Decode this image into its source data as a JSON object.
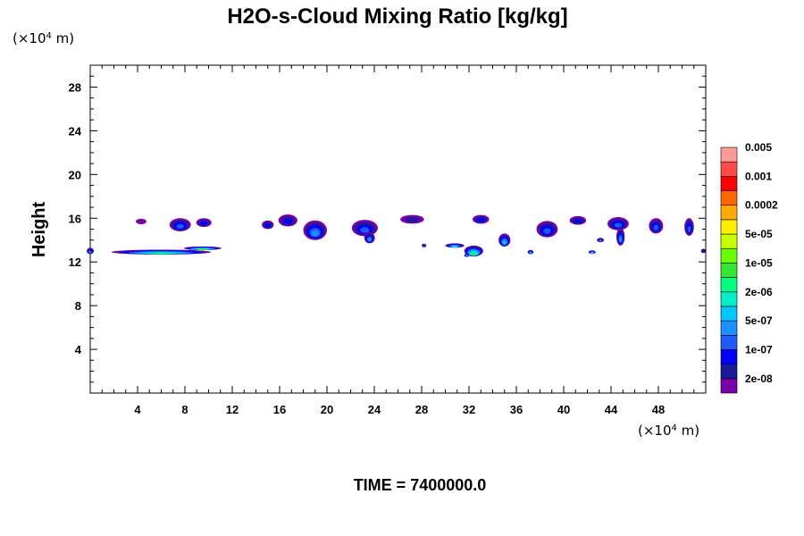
{
  "chart_data": {
    "type": "contour",
    "title": "H2O-s-Cloud Mixing Ratio [kg/kg]",
    "ylabel": "Height",
    "x_unit_label": "(×10",
    "x_unit_exp": "4",
    "x_unit_tail": " m)",
    "y_unit_label": "(×10",
    "y_unit_exp": "4",
    "y_unit_tail": " m)",
    "time_label": "TIME = 7400000.0",
    "xlim": [
      0,
      52
    ],
    "ylim": [
      0,
      30
    ],
    "x_ticks": [
      4,
      8,
      12,
      16,
      20,
      24,
      28,
      32,
      36,
      40,
      44,
      48
    ],
    "y_ticks": [
      4,
      8,
      12,
      16,
      20,
      24,
      28
    ],
    "colorbar": {
      "colors": [
        "#7b00a8",
        "#1a1a9a",
        "#0000ff",
        "#1e5cff",
        "#1e90ff",
        "#00c8ff",
        "#00eec8",
        "#00ff80",
        "#33e633",
        "#66ff00",
        "#c8ff00",
        "#ffee00",
        "#ffaa00",
        "#ff6600",
        "#ff0000",
        "#ff4a4a",
        "#ff9a9a"
      ],
      "labels": [
        "2e-08",
        "1e-07",
        "5e-07",
        "2e-06",
        "1e-05",
        "5e-05",
        "0.0002",
        "0.001",
        "0.005"
      ]
    },
    "features": [
      {
        "x": 0.0,
        "y": 13.0,
        "w": 0.6,
        "h": 0.6,
        "level": 4
      },
      {
        "x": 4.3,
        "y": 15.7,
        "w": 0.9,
        "h": 0.5,
        "level": 0
      },
      {
        "x": 7.6,
        "y": 15.4,
        "w": 1.8,
        "h": 1.2,
        "level": 3
      },
      {
        "x": 9.6,
        "y": 15.6,
        "w": 1.3,
        "h": 0.8,
        "level": 2
      },
      {
        "x": 6.0,
        "y": 12.9,
        "w": 8.4,
        "h": 0.45,
        "level": 7
      },
      {
        "x": 9.5,
        "y": 13.25,
        "w": 3.2,
        "h": 0.3,
        "level": 8
      },
      {
        "x": 15.0,
        "y": 15.4,
        "w": 1.0,
        "h": 0.8,
        "level": 2
      },
      {
        "x": 16.7,
        "y": 15.8,
        "w": 1.6,
        "h": 1.1,
        "level": 2
      },
      {
        "x": 19.0,
        "y": 14.9,
        "w": 2.0,
        "h": 1.8,
        "level": 4
      },
      {
        "x": 23.2,
        "y": 15.1,
        "w": 2.2,
        "h": 1.5,
        "level": 3
      },
      {
        "x": 23.6,
        "y": 14.2,
        "w": 0.9,
        "h": 1.0,
        "level": 4
      },
      {
        "x": 27.2,
        "y": 15.9,
        "w": 2.0,
        "h": 0.8,
        "level": 1
      },
      {
        "x": 28.2,
        "y": 13.5,
        "w": 0.4,
        "h": 0.3,
        "level": 3
      },
      {
        "x": 30.8,
        "y": 13.5,
        "w": 1.6,
        "h": 0.4,
        "level": 6
      },
      {
        "x": 32.4,
        "y": 13.0,
        "w": 1.6,
        "h": 1.0,
        "level": 8
      },
      {
        "x": 31.8,
        "y": 12.6,
        "w": 0.4,
        "h": 0.3,
        "level": 5
      },
      {
        "x": 33.0,
        "y": 15.9,
        "w": 1.4,
        "h": 0.8,
        "level": 2
      },
      {
        "x": 35.0,
        "y": 14.0,
        "w": 1.0,
        "h": 1.2,
        "level": 5
      },
      {
        "x": 37.2,
        "y": 12.9,
        "w": 0.5,
        "h": 0.4,
        "level": 5
      },
      {
        "x": 38.6,
        "y": 15.0,
        "w": 1.8,
        "h": 1.5,
        "level": 3
      },
      {
        "x": 41.2,
        "y": 15.8,
        "w": 1.4,
        "h": 0.8,
        "level": 2
      },
      {
        "x": 42.4,
        "y": 12.9,
        "w": 0.6,
        "h": 0.3,
        "level": 6
      },
      {
        "x": 43.1,
        "y": 14.0,
        "w": 0.6,
        "h": 0.4,
        "level": 4
      },
      {
        "x": 44.6,
        "y": 15.5,
        "w": 1.8,
        "h": 1.2,
        "level": 3
      },
      {
        "x": 44.8,
        "y": 14.3,
        "w": 0.7,
        "h": 1.6,
        "level": 4
      },
      {
        "x": 47.8,
        "y": 15.3,
        "w": 1.2,
        "h": 1.4,
        "level": 3
      },
      {
        "x": 50.6,
        "y": 15.2,
        "w": 0.8,
        "h": 1.6,
        "level": 3
      },
      {
        "x": 51.8,
        "y": 13.0,
        "w": 0.4,
        "h": 0.4,
        "level": 3
      }
    ]
  }
}
